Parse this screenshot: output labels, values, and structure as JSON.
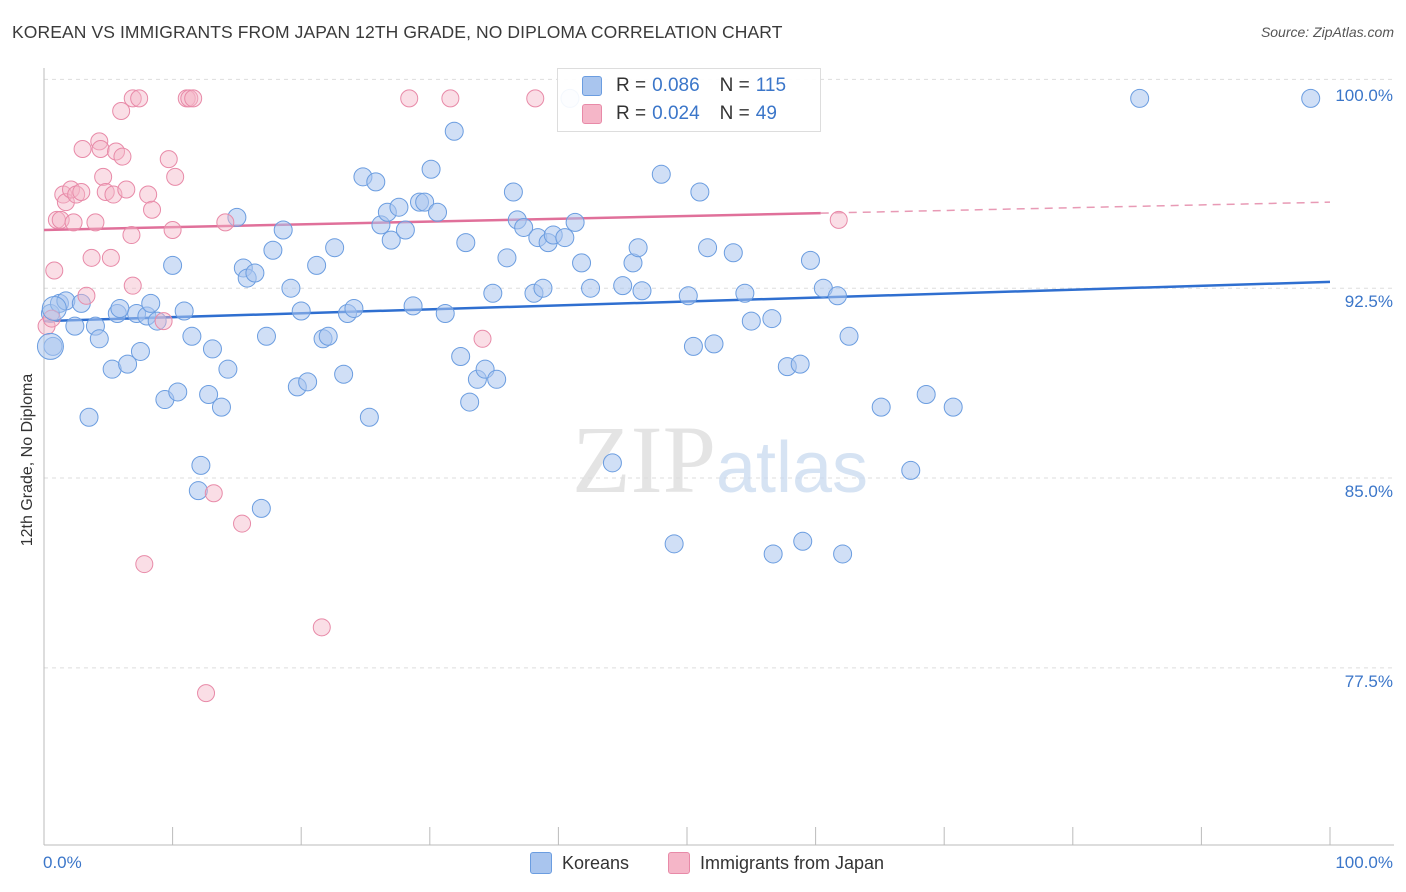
{
  "title": "KOREAN VS IMMIGRANTS FROM JAPAN 12TH GRADE, NO DIPLOMA CORRELATION CHART",
  "source": "Source: ZipAtlas.com",
  "watermark": "ZIPatlas",
  "legend_top": {
    "rows": [
      {
        "r_label": "R =",
        "r_value": "0.086",
        "n_label": "N =",
        "n_value": "115",
        "color": "#a9c5ee"
      },
      {
        "r_label": "R =",
        "r_value": "0.024",
        "n_label": "N =",
        "n_value": "49",
        "color": "#f5b6c8"
      }
    ]
  },
  "legend_bottom": [
    {
      "label": "Koreans",
      "color": "#a9c5ee"
    },
    {
      "label": "Immigrants from Japan",
      "color": "#f5b6c8"
    }
  ],
  "chart_data": {
    "type": "scatter",
    "title": "KOREAN VS IMMIGRANTS FROM JAPAN 12TH GRADE, NO DIPLOMA CORRELATION CHART",
    "ylabel": "12th Grade, No Diploma",
    "xlabel": "",
    "x_tick_labels": [
      "0.0%",
      "100.0%"
    ],
    "y_tick_labels": [
      "100.0%",
      "92.5%",
      "85.0%",
      "77.5%"
    ],
    "y_ticks": [
      100.0,
      92.5,
      85.0,
      77.5
    ],
    "xlim": [
      0,
      100
    ],
    "ylim": [
      70.5,
      101.2
    ],
    "grid": true,
    "series": [
      {
        "name": "Koreans",
        "color": "#6b9de0",
        "fill": "#a9c5ee",
        "trend": {
          "x": [
            0,
            100
          ],
          "y": [
            91.2,
            92.75
          ],
          "dashed_from": null
        },
        "points": [
          [
            0.5,
            91.5
          ],
          [
            0.7,
            90.2
          ],
          [
            1.2,
            91.9
          ],
          [
            1.7,
            92.0
          ],
          [
            2.4,
            91.0
          ],
          [
            2.9,
            91.9
          ],
          [
            3.5,
            87.4
          ],
          [
            4.0,
            91.0
          ],
          [
            4.3,
            90.5
          ],
          [
            5.3,
            89.3
          ],
          [
            5.7,
            91.5
          ],
          [
            5.9,
            91.7
          ],
          [
            6.5,
            89.5
          ],
          [
            7.2,
            91.5
          ],
          [
            7.5,
            90.0
          ],
          [
            8.0,
            91.4
          ],
          [
            8.3,
            91.9
          ],
          [
            8.8,
            91.2
          ],
          [
            9.4,
            88.1
          ],
          [
            10.0,
            93.4
          ],
          [
            10.4,
            88.4
          ],
          [
            10.9,
            91.6
          ],
          [
            11.5,
            90.6
          ],
          [
            12.2,
            85.5
          ],
          [
            12.0,
            84.5
          ],
          [
            12.8,
            88.3
          ],
          [
            13.1,
            90.1
          ],
          [
            13.8,
            87.8
          ],
          [
            14.3,
            89.3
          ],
          [
            15.0,
            95.3
          ],
          [
            15.5,
            93.3
          ],
          [
            15.8,
            92.9
          ],
          [
            16.4,
            93.1
          ],
          [
            16.9,
            83.8
          ],
          [
            17.3,
            90.6
          ],
          [
            17.8,
            94.0
          ],
          [
            18.6,
            94.8
          ],
          [
            19.2,
            92.5
          ],
          [
            19.7,
            88.6
          ],
          [
            20.0,
            91.6
          ],
          [
            20.5,
            88.8
          ],
          [
            21.2,
            93.4
          ],
          [
            21.7,
            90.5
          ],
          [
            22.1,
            90.6
          ],
          [
            22.6,
            94.1
          ],
          [
            23.3,
            89.1
          ],
          [
            23.6,
            91.5
          ],
          [
            24.1,
            91.7
          ],
          [
            24.8,
            96.9
          ],
          [
            25.3,
            87.4
          ],
          [
            25.8,
            96.7
          ],
          [
            26.2,
            95.0
          ],
          [
            26.7,
            95.5
          ],
          [
            27.0,
            94.4
          ],
          [
            27.6,
            95.7
          ],
          [
            28.1,
            94.8
          ],
          [
            28.7,
            91.8
          ],
          [
            29.2,
            95.9
          ],
          [
            29.6,
            95.9
          ],
          [
            30.1,
            97.2
          ],
          [
            30.6,
            95.5
          ],
          [
            31.2,
            91.5
          ],
          [
            31.9,
            98.7
          ],
          [
            32.4,
            89.8
          ],
          [
            32.8,
            94.3
          ],
          [
            33.1,
            88.0
          ],
          [
            33.7,
            88.9
          ],
          [
            34.3,
            89.3
          ],
          [
            34.9,
            92.3
          ],
          [
            35.2,
            88.9
          ],
          [
            36.0,
            93.7
          ],
          [
            36.5,
            96.3
          ],
          [
            36.8,
            95.2
          ],
          [
            37.3,
            94.9
          ],
          [
            38.1,
            92.3
          ],
          [
            38.4,
            94.5
          ],
          [
            38.8,
            92.5
          ],
          [
            39.2,
            94.3
          ],
          [
            39.6,
            94.6
          ],
          [
            40.5,
            94.5
          ],
          [
            41.3,
            95.1
          ],
          [
            41.8,
            93.5
          ],
          [
            42.5,
            92.5
          ],
          [
            44.2,
            85.6
          ],
          [
            45.0,
            92.6
          ],
          [
            45.8,
            93.5
          ],
          [
            46.2,
            94.1
          ],
          [
            46.5,
            92.4
          ],
          [
            48.0,
            97.0
          ],
          [
            49.0,
            82.4
          ],
          [
            50.1,
            92.2
          ],
          [
            50.5,
            90.2
          ],
          [
            51.0,
            96.3
          ],
          [
            51.6,
            94.1
          ],
          [
            52.1,
            90.3
          ],
          [
            53.6,
            93.9
          ],
          [
            54.5,
            92.3
          ],
          [
            55.0,
            91.2
          ],
          [
            56.6,
            91.3
          ],
          [
            56.7,
            82.0
          ],
          [
            57.8,
            89.4
          ],
          [
            58.8,
            89.5
          ],
          [
            59.0,
            82.5
          ],
          [
            59.6,
            93.6
          ],
          [
            60.6,
            92.5
          ],
          [
            61.7,
            92.2
          ],
          [
            62.1,
            82.0
          ],
          [
            62.6,
            90.6
          ],
          [
            65.1,
            87.8
          ],
          [
            67.4,
            85.3
          ],
          [
            68.6,
            88.3
          ],
          [
            70.7,
            87.8
          ],
          [
            85.2,
            100.0
          ],
          [
            98.5,
            100.0
          ],
          [
            40.9,
            100.0
          ]
        ]
      },
      {
        "name": "Immigrants from Japan",
        "color": "#e88aa8",
        "fill": "#f5b6c8",
        "trend": {
          "x": [
            0,
            100
          ],
          "y": [
            94.8,
            95.9
          ],
          "solid_until_x": 60.4
        },
        "points": [
          [
            0.2,
            91.0
          ],
          [
            0.6,
            91.3
          ],
          [
            0.8,
            93.2
          ],
          [
            1.0,
            95.2
          ],
          [
            1.3,
            95.2
          ],
          [
            1.5,
            96.2
          ],
          [
            1.7,
            95.9
          ],
          [
            2.1,
            96.4
          ],
          [
            2.3,
            95.1
          ],
          [
            2.5,
            96.2
          ],
          [
            2.9,
            96.3
          ],
          [
            3.0,
            98.0
          ],
          [
            3.3,
            92.2
          ],
          [
            3.7,
            93.7
          ],
          [
            4.0,
            95.1
          ],
          [
            4.3,
            98.3
          ],
          [
            4.4,
            98.0
          ],
          [
            4.6,
            96.9
          ],
          [
            4.8,
            96.3
          ],
          [
            5.2,
            93.7
          ],
          [
            5.4,
            96.2
          ],
          [
            5.6,
            97.9
          ],
          [
            6.0,
            99.5
          ],
          [
            6.1,
            97.7
          ],
          [
            6.4,
            96.4
          ],
          [
            6.8,
            94.6
          ],
          [
            6.9,
            92.6
          ],
          [
            6.9,
            100.0
          ],
          [
            7.4,
            100.0
          ],
          [
            7.8,
            81.6
          ],
          [
            8.1,
            96.2
          ],
          [
            8.4,
            95.6
          ],
          [
            9.3,
            91.2
          ],
          [
            9.7,
            97.6
          ],
          [
            10.0,
            94.8
          ],
          [
            10.2,
            96.9
          ],
          [
            11.1,
            100.0
          ],
          [
            11.3,
            100.0
          ],
          [
            11.6,
            100.0
          ],
          [
            12.6,
            76.5
          ],
          [
            13.2,
            84.4
          ],
          [
            14.1,
            95.1
          ],
          [
            15.4,
            83.2
          ],
          [
            21.6,
            79.1
          ],
          [
            28.4,
            100.0
          ],
          [
            31.6,
            100.0
          ],
          [
            34.1,
            90.5
          ],
          [
            38.2,
            100.0
          ],
          [
            61.8,
            95.2
          ]
        ]
      }
    ]
  }
}
